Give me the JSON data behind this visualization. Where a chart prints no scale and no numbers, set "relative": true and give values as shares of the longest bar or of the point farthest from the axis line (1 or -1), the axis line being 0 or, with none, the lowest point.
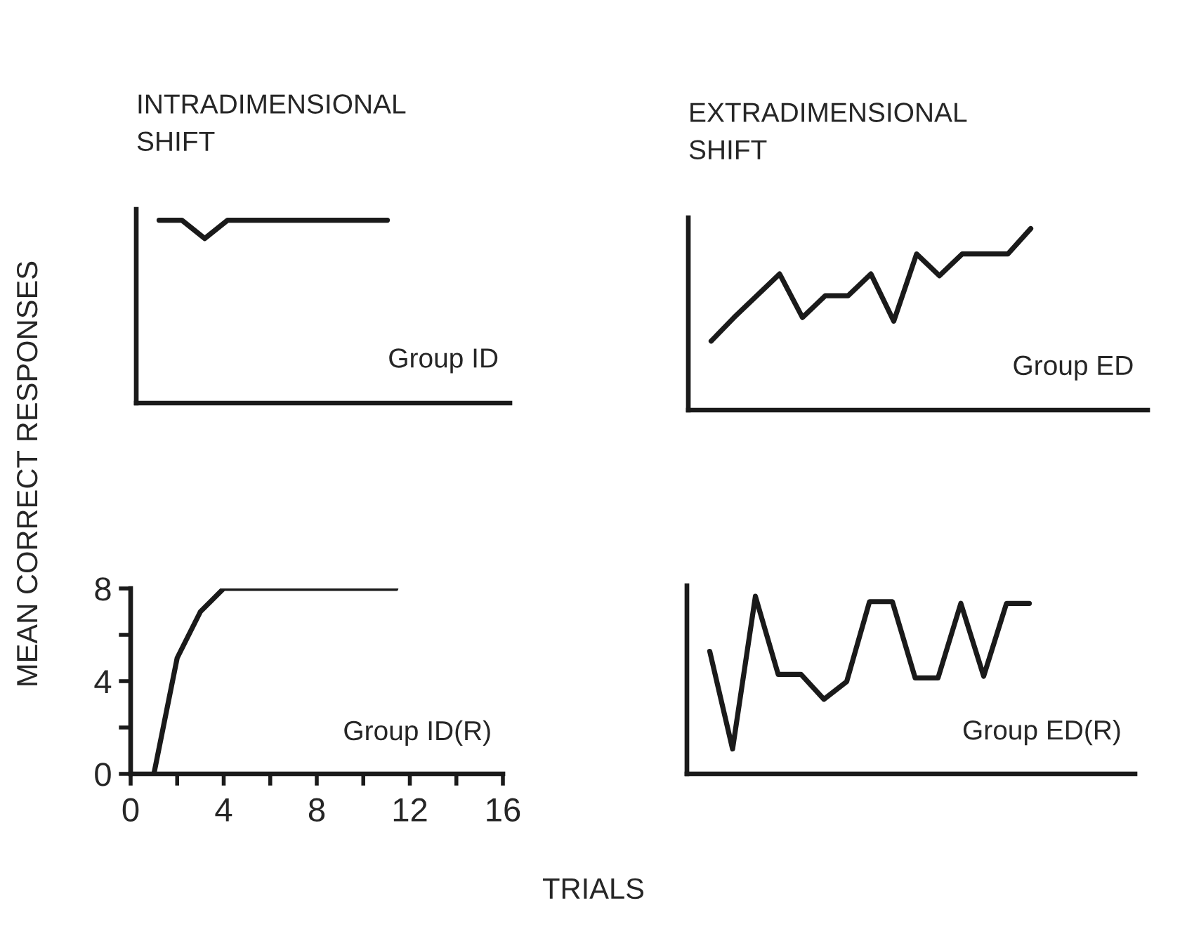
{
  "chart_data": [
    {
      "type": "line",
      "title": "INTRADIMENSIONAL\nSHIFT",
      "ylabel": "MEAN CORRECT RESPONSES",
      "annotations": [
        "Group ID"
      ],
      "relative": true,
      "categories": [
        null,
        null,
        null,
        null,
        null,
        null,
        null,
        null,
        null,
        null,
        null
      ],
      "series": [
        {
          "color": "#1a1a1a",
          "values": [
            1,
            1,
            0.9,
            1,
            1,
            1,
            1,
            1,
            1,
            1,
            1
          ]
        }
      ],
      "grid": false,
      "legend": false
    },
    {
      "type": "line",
      "title": "EXTRADIMENSIONAL\nSHIFT",
      "annotations": [
        "Group ED"
      ],
      "relative": true,
      "categories": [
        null,
        null,
        null,
        null,
        null,
        null,
        null,
        null,
        null,
        null,
        null,
        null,
        null,
        null,
        null
      ],
      "series": [
        {
          "color": "#1a1a1a",
          "values": [
            0.38,
            0.51,
            0.63,
            0.75,
            0.51,
            0.63,
            0.63,
            0.75,
            0.49,
            0.86,
            0.74,
            0.86,
            0.86,
            0.86,
            1
          ]
        }
      ],
      "grid": false,
      "legend": false
    },
    {
      "type": "line",
      "xlabel": "TRIALS",
      "annotations": [
        "Group ID(R)"
      ],
      "x": [
        1,
        2,
        3,
        4,
        11.4
      ],
      "series": [
        {
          "color": "#1a1a1a",
          "values": [
            0,
            5,
            7,
            8,
            8
          ]
        }
      ],
      "xlim": [
        0,
        16
      ],
      "ylim": [
        0,
        8
      ],
      "xticks": [
        0,
        {
          "value": 2,
          "label": null
        },
        4,
        {
          "value": 6,
          "label": null
        },
        8,
        {
          "value": 10,
          "label": null
        },
        12,
        {
          "value": 14,
          "label": null
        },
        16
      ],
      "yticks": [
        0,
        {
          "value": 2,
          "label": null
        },
        4,
        {
          "value": 6,
          "label": null
        },
        8
      ],
      "grid": false,
      "legend": false
    },
    {
      "type": "line",
      "annotations": [
        "Group ED(R)"
      ],
      "relative": true,
      "categories": [
        null,
        null,
        null,
        null,
        null,
        null,
        null,
        null,
        null,
        null,
        null,
        null,
        null,
        null,
        null
      ],
      "series": [
        {
          "color": "#1a1a1a",
          "values": [
            0.69,
            0.14,
            1,
            0.56,
            0.56,
            0.42,
            0.52,
            0.97,
            0.97,
            0.54,
            0.54,
            0.96,
            0.55,
            0.96,
            0.96
          ]
        }
      ],
      "grid": false,
      "legend": false
    }
  ]
}
